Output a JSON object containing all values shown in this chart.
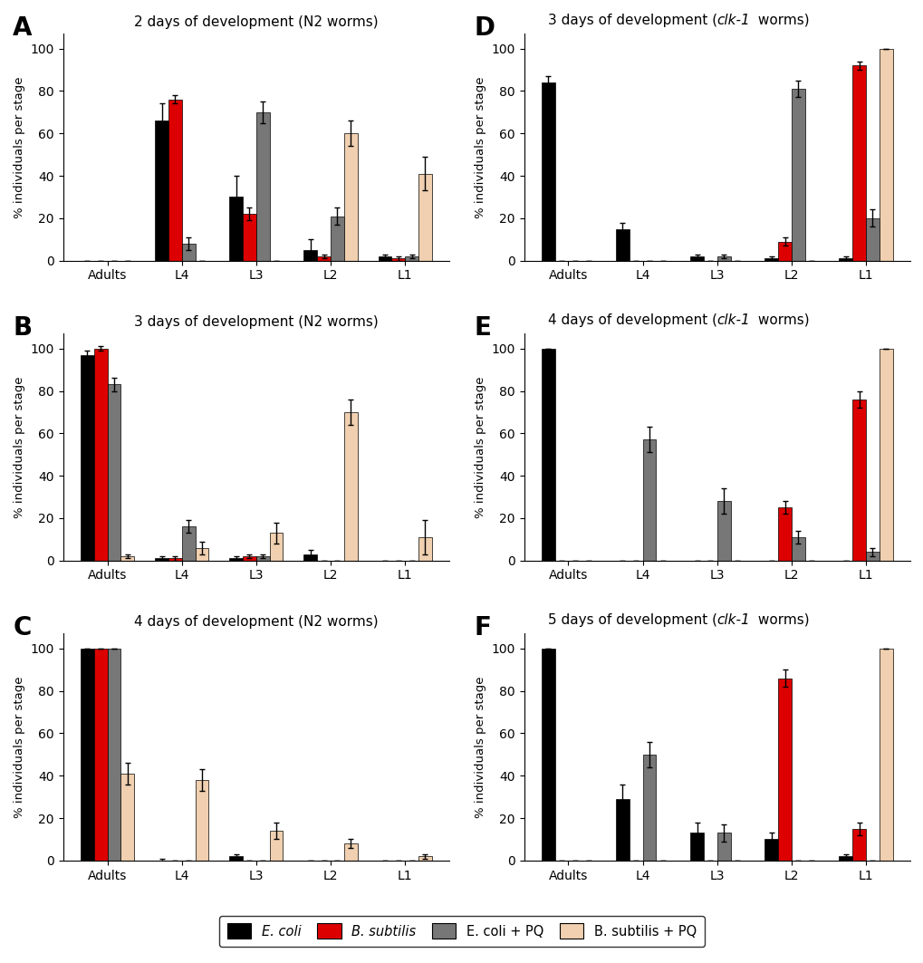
{
  "panels": [
    {
      "label": "A",
      "title": "2 days of development (N2 worms)",
      "title_italic": false,
      "categories": [
        "Adults",
        "L4",
        "L3",
        "L2",
        "L1"
      ],
      "ecoli": [
        0,
        66,
        30,
        5,
        2
      ],
      "bsubt": [
        0,
        76,
        22,
        2,
        1
      ],
      "ecoli_pq": [
        0,
        8,
        70,
        21,
        2
      ],
      "bsubt_pq": [
        0,
        0,
        0,
        60,
        41
      ],
      "ecoli_err": [
        0,
        8,
        10,
        5,
        1
      ],
      "bsubt_err": [
        0,
        2,
        3,
        1,
        1
      ],
      "ecoli_pq_err": [
        0,
        3,
        5,
        4,
        1
      ],
      "bsubt_pq_err": [
        0,
        0,
        0,
        6,
        8
      ]
    },
    {
      "label": "B",
      "title": "3 days of development (N2 worms)",
      "title_italic": false,
      "categories": [
        "Adults",
        "L4",
        "L3",
        "L2",
        "L1"
      ],
      "ecoli": [
        97,
        1,
        1,
        3,
        0
      ],
      "bsubt": [
        100,
        1,
        2,
        0,
        0
      ],
      "ecoli_pq": [
        83,
        16,
        2,
        0,
        0
      ],
      "bsubt_pq": [
        2,
        6,
        13,
        70,
        11
      ],
      "ecoli_err": [
        2,
        1,
        1,
        2,
        0
      ],
      "bsubt_err": [
        1,
        1,
        1,
        0,
        0
      ],
      "ecoli_pq_err": [
        3,
        3,
        1,
        0,
        0
      ],
      "bsubt_pq_err": [
        1,
        3,
        5,
        6,
        8
      ]
    },
    {
      "label": "C",
      "title": "4 days of development (N2 worms)",
      "title_italic": false,
      "categories": [
        "Adults",
        "L4",
        "L3",
        "L2",
        "L1"
      ],
      "ecoli": [
        100,
        0,
        2,
        0,
        0
      ],
      "bsubt": [
        100,
        0,
        0,
        0,
        0
      ],
      "ecoli_pq": [
        100,
        0,
        0,
        0,
        0
      ],
      "bsubt_pq": [
        41,
        38,
        14,
        8,
        2
      ],
      "ecoli_err": [
        0,
        1,
        1,
        0,
        0
      ],
      "bsubt_err": [
        0,
        0,
        0,
        0,
        0
      ],
      "ecoli_pq_err": [
        0,
        0,
        0,
        0,
        0
      ],
      "bsubt_pq_err": [
        5,
        5,
        4,
        2,
        1
      ]
    },
    {
      "label": "D",
      "title": "3 days of development (clk-1 worms)",
      "title_italic": true,
      "title_before": "3 days of development (",
      "title_gene": "clk-1",
      "title_after": " worms)",
      "categories": [
        "Adults",
        "L4",
        "L3",
        "L2",
        "L1"
      ],
      "ecoli": [
        84,
        15,
        2,
        1,
        1
      ],
      "bsubt": [
        0,
        0,
        0,
        9,
        92
      ],
      "ecoli_pq": [
        0,
        0,
        2,
        81,
        20
      ],
      "bsubt_pq": [
        0,
        0,
        0,
        0,
        100
      ],
      "ecoli_err": [
        3,
        3,
        1,
        1,
        1
      ],
      "bsubt_err": [
        0,
        0,
        0,
        2,
        2
      ],
      "ecoli_pq_err": [
        0,
        0,
        1,
        4,
        4
      ],
      "bsubt_pq_err": [
        0,
        0,
        0,
        0,
        0
      ]
    },
    {
      "label": "E",
      "title": "4 days of development (clk-1 worms)",
      "title_italic": true,
      "title_before": "4 days of development (",
      "title_gene": "clk-1",
      "title_after": " worms)",
      "categories": [
        "Adults",
        "L4",
        "L3",
        "L2",
        "L1"
      ],
      "ecoli": [
        100,
        0,
        0,
        0,
        0
      ],
      "bsubt": [
        0,
        0,
        0,
        25,
        76
      ],
      "ecoli_pq": [
        0,
        57,
        28,
        11,
        4
      ],
      "bsubt_pq": [
        0,
        0,
        0,
        0,
        100
      ],
      "ecoli_err": [
        0,
        0,
        0,
        0,
        0
      ],
      "bsubt_err": [
        0,
        0,
        0,
        3,
        4
      ],
      "ecoli_pq_err": [
        0,
        6,
        6,
        3,
        2
      ],
      "bsubt_pq_err": [
        0,
        0,
        0,
        0,
        0
      ]
    },
    {
      "label": "F",
      "title": "5 days of development (clk-1 worms)",
      "title_italic": true,
      "title_before": "5 days of development (",
      "title_gene": "clk-1",
      "title_after": " worms)",
      "categories": [
        "Adults",
        "L4",
        "L3",
        "L2",
        "L1"
      ],
      "ecoli": [
        100,
        29,
        13,
        10,
        2
      ],
      "bsubt": [
        0,
        0,
        0,
        86,
        15
      ],
      "ecoli_pq": [
        0,
        50,
        13,
        0,
        0
      ],
      "bsubt_pq": [
        0,
        0,
        0,
        0,
        100
      ],
      "ecoli_err": [
        0,
        7,
        5,
        3,
        1
      ],
      "bsubt_err": [
        0,
        0,
        0,
        4,
        3
      ],
      "ecoli_pq_err": [
        0,
        6,
        4,
        0,
        0
      ],
      "bsubt_pq_err": [
        0,
        0,
        0,
        0,
        0
      ]
    }
  ],
  "colors": {
    "ecoli": "#000000",
    "bsubt": "#dd0000",
    "ecoli_pq": "#777777",
    "bsubt_pq": "#f0d0b0"
  },
  "bar_width": 0.18,
  "ylabel": "% individuals per stage",
  "ylim": [
    0,
    107
  ],
  "yticks": [
    0,
    20,
    40,
    60,
    80,
    100
  ],
  "legend_labels": [
    "E. coli",
    "B. subtilis",
    "E. coli + PQ",
    "B. subtilis + PQ"
  ],
  "legend_italic": [
    true,
    true,
    false,
    false
  ]
}
